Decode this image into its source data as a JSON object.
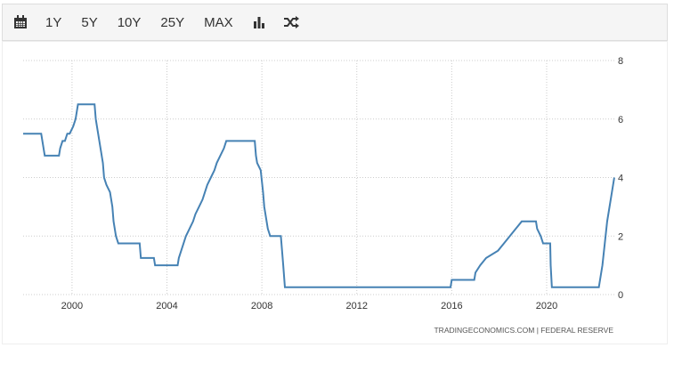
{
  "toolbar": {
    "buttons": [
      "1Y",
      "5Y",
      "10Y",
      "25Y",
      "MAX"
    ]
  },
  "chart_data": {
    "type": "line",
    "color": "#4682b4",
    "grid": true,
    "source": "TRADINGECONOMICS.COM  |  FEDERAL RESERVE",
    "xlim": [
      1997.94,
      2022.89
    ],
    "xticks": [
      2000,
      2004,
      2008,
      2012,
      2016,
      2020
    ],
    "ylim": [
      0,
      8
    ],
    "yticks": [
      0,
      2,
      4,
      6,
      8
    ],
    "x": [
      1997.94,
      1998.7,
      1998.75,
      1998.8,
      1998.85,
      1998.9,
      1999.45,
      1999.5,
      1999.6,
      1999.7,
      1999.8,
      1999.9,
      2000.05,
      2000.15,
      2000.25,
      2000.35,
      2000.95,
      2001.0,
      2001.1,
      2001.2,
      2001.3,
      2001.35,
      2001.45,
      2001.6,
      2001.7,
      2001.75,
      2001.85,
      2001.95,
      2002.85,
      2002.9,
      2003.45,
      2003.5,
      2004.45,
      2004.5,
      2004.6,
      2004.7,
      2004.8,
      2004.95,
      2005.1,
      2005.2,
      2005.35,
      2005.5,
      2005.6,
      2005.7,
      2005.85,
      2006.0,
      2006.1,
      2006.25,
      2006.4,
      2006.5,
      2007.7,
      2007.75,
      2007.8,
      2007.95,
      2008.05,
      2008.1,
      2008.25,
      2008.35,
      2008.8,
      2008.85,
      2008.9,
      2008.97,
      2015.95,
      2016.0,
      2016.95,
      2017.0,
      2017.2,
      2017.45,
      2017.95,
      2018.2,
      2018.45,
      2018.7,
      2018.95,
      2019.55,
      2019.6,
      2019.75,
      2019.85,
      2020.15,
      2020.17,
      2020.22,
      2022.2,
      2022.25,
      2022.35,
      2022.45,
      2022.55,
      2022.7,
      2022.85
    ],
    "values": [
      5.5,
      5.5,
      5.25,
      5.0,
      4.75,
      4.75,
      4.75,
      5.0,
      5.25,
      5.25,
      5.5,
      5.5,
      5.75,
      6.0,
      6.5,
      6.5,
      6.5,
      6.0,
      5.5,
      5.0,
      4.5,
      4.0,
      3.75,
      3.5,
      3.0,
      2.5,
      2.0,
      1.75,
      1.75,
      1.25,
      1.25,
      1.0,
      1.0,
      1.25,
      1.5,
      1.75,
      2.0,
      2.25,
      2.5,
      2.75,
      3.0,
      3.25,
      3.5,
      3.75,
      4.0,
      4.25,
      4.5,
      4.75,
      5.0,
      5.25,
      5.25,
      4.75,
      4.5,
      4.25,
      3.5,
      3.0,
      2.25,
      2.0,
      2.0,
      1.5,
      1.0,
      0.25,
      0.25,
      0.5,
      0.5,
      0.75,
      1.0,
      1.25,
      1.5,
      1.75,
      2.0,
      2.25,
      2.5,
      2.5,
      2.25,
      2.0,
      1.75,
      1.75,
      1.0,
      0.25,
      0.25,
      0.5,
      1.0,
      1.75,
      2.5,
      3.25,
      4.0
    ]
  }
}
